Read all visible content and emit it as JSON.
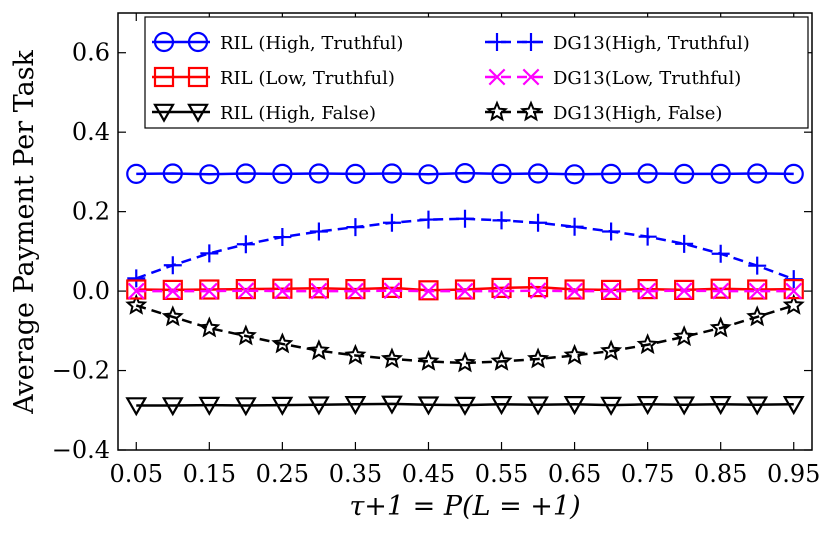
{
  "chart_data": {
    "type": "line",
    "title": "",
    "xlabel": "τ+1 = P(L = +1)",
    "ylabel": "Average Payment Per Task",
    "xlim": [
      0.025,
      0.975
    ],
    "ylim": [
      -0.4,
      0.7
    ],
    "x": [
      0.05,
      0.1,
      0.15,
      0.2,
      0.25,
      0.3,
      0.35,
      0.4,
      0.45,
      0.5,
      0.55,
      0.6,
      0.65,
      0.7,
      0.75,
      0.8,
      0.85,
      0.9,
      0.95
    ],
    "x_tick_values": [
      0.05,
      0.15,
      0.25,
      0.35,
      0.45,
      0.55,
      0.65,
      0.75,
      0.85,
      0.95
    ],
    "x_tick_labels": [
      "0.05",
      "0.15",
      "0.25",
      "0.35",
      "0.45",
      "0.55",
      "0.65",
      "0.75",
      "0.85",
      "0.95"
    ],
    "y_tick_values": [
      -0.4,
      -0.2,
      0.0,
      0.2,
      0.4,
      0.6
    ],
    "y_tick_labels": [
      "−0.4",
      "−0.2",
      "0.0",
      "0.2",
      "0.4",
      "0.6"
    ],
    "legend_position": "top",
    "series": [
      {
        "name": "RIL (High, Truthful)",
        "color": "#0000ff",
        "marker": "circle",
        "dashed": false,
        "values": [
          0.295,
          0.296,
          0.294,
          0.296,
          0.295,
          0.296,
          0.295,
          0.296,
          0.294,
          0.297,
          0.295,
          0.296,
          0.294,
          0.295,
          0.296,
          0.295,
          0.295,
          0.296,
          0.295
        ]
      },
      {
        "name": "RIL (Low, Truthful)",
        "color": "#ff0000",
        "marker": "square",
        "dashed": false,
        "values": [
          0.004,
          0.003,
          0.004,
          0.005,
          0.006,
          0.007,
          0.005,
          0.008,
          0.002,
          0.004,
          0.008,
          0.01,
          0.004,
          0.003,
          0.005,
          0.003,
          0.006,
          0.004,
          0.005
        ]
      },
      {
        "name": "RIL (High, False)",
        "color": "#000000",
        "marker": "triangle-down",
        "dashed": false,
        "values": [
          -0.288,
          -0.288,
          -0.287,
          -0.288,
          -0.287,
          -0.286,
          -0.285,
          -0.284,
          -0.286,
          -0.287,
          -0.285,
          -0.286,
          -0.285,
          -0.287,
          -0.285,
          -0.286,
          -0.285,
          -0.286,
          -0.285
        ]
      },
      {
        "name": "DG13(High, Truthful)",
        "color": "#0000ff",
        "marker": "plus",
        "dashed": true,
        "values": [
          0.032,
          0.065,
          0.095,
          0.118,
          0.136,
          0.15,
          0.161,
          0.172,
          0.18,
          0.182,
          0.178,
          0.172,
          0.162,
          0.15,
          0.137,
          0.119,
          0.094,
          0.064,
          0.03
        ]
      },
      {
        "name": "DG13(Low, Truthful)",
        "color": "#ff00ff",
        "marker": "x",
        "dashed": true,
        "values": [
          0.0,
          0.0,
          0.0,
          0.001,
          0.0,
          0.0,
          0.0,
          0.001,
          0.0,
          0.0,
          0.0,
          0.001,
          0.0,
          0.0,
          0.0,
          0.001,
          0.0,
          0.0,
          0.0
        ]
      },
      {
        "name": "DG13(High, False)",
        "color": "#000000",
        "marker": "star",
        "dashed": true,
        "values": [
          -0.036,
          -0.065,
          -0.093,
          -0.113,
          -0.133,
          -0.15,
          -0.162,
          -0.171,
          -0.177,
          -0.181,
          -0.177,
          -0.171,
          -0.162,
          -0.151,
          -0.135,
          -0.115,
          -0.093,
          -0.065,
          -0.036
        ]
      }
    ]
  }
}
